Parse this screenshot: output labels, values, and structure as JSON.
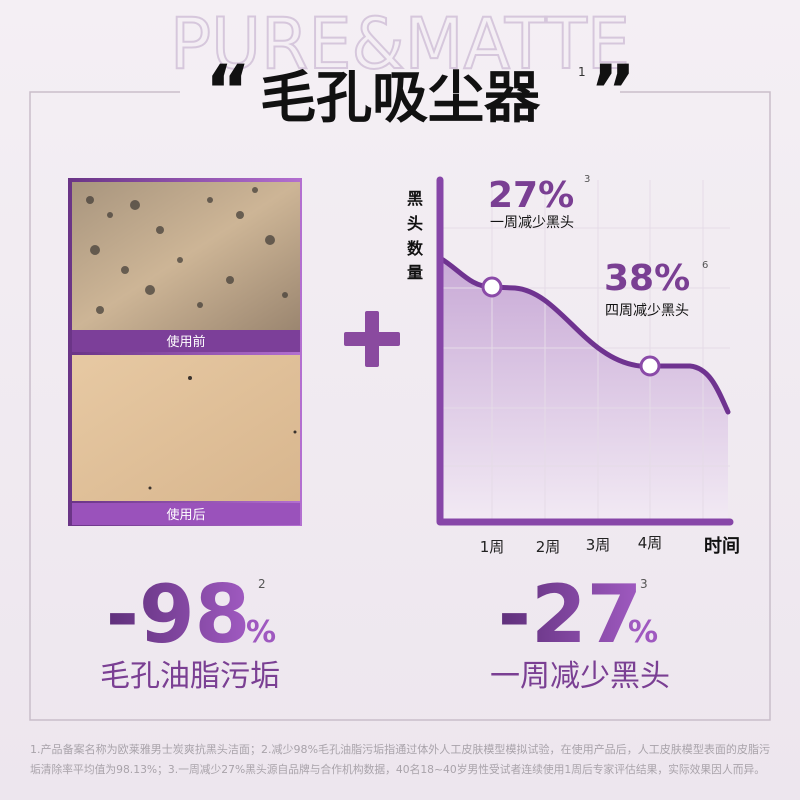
{
  "header": {
    "watermark": "PURE&MATTE",
    "open_quote": "“",
    "title": "毛孔吸尘器",
    "title_note": "1",
    "close_quote": "”"
  },
  "before_after": {
    "before": "使用前",
    "after": "使用后"
  },
  "curve": {
    "y_label": [
      "黑",
      "头",
      "数",
      "量"
    ],
    "x_label": "时间",
    "x_ticks": [
      "1周",
      "2周",
      "3周",
      "4周"
    ],
    "callouts": [
      {
        "value": "27%",
        "note": "3",
        "text": "一周减少黑头"
      },
      {
        "value": "38%",
        "note": "6",
        "text": "四周减少黑头"
      }
    ]
  },
  "stats": [
    {
      "value": "-98",
      "unit": "%",
      "note": "2",
      "text": "毛孔油脂污垢"
    },
    {
      "value": "-27",
      "unit": "%",
      "note": "3",
      "text": "一周减少黑头"
    }
  ],
  "footnote": [
    "1.产品备案名称为欧莱雅男士炭爽抗黑头洁面；2.减少98%毛孔油脂污垢指通过体外人工皮肤模型模拟试验，在使用产品后，人工皮肤模型表面的皮脂污",
    "垢清除率平均值为98.13%；3.一周减少27%黑头源自品牌与合作机构数据，40名18~40岁男性受试者连续使用1周后专家评估结果，实际效果因人而异。"
  ]
}
